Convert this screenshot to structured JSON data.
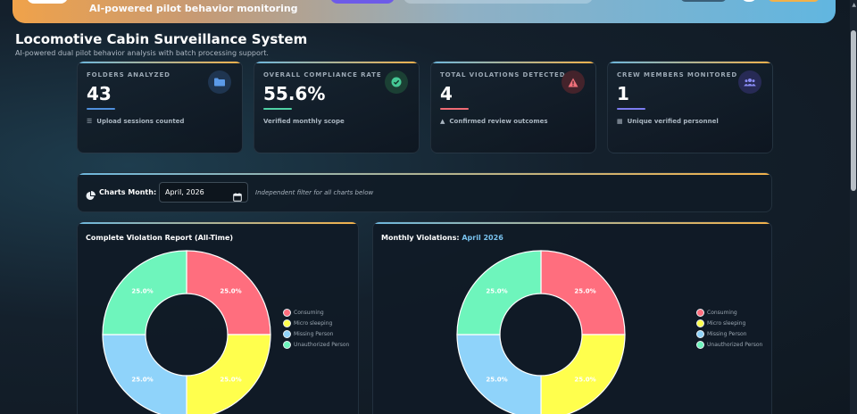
{
  "header": {
    "subtitle": "AI-powered pilot behavior monitoring"
  },
  "page": {
    "title": "Locomotive Cabin Surveillance System",
    "subtitle": "AI-powered dual pilot behavior analysis with batch processing support."
  },
  "stats": [
    {
      "label": "FOLDERS ANALYZED",
      "value": "43",
      "foot": "Upload sessions counted",
      "color": "#4f8fdc",
      "icon": "folder-icon",
      "foot_icon": "layers-icon"
    },
    {
      "label": "OVERALL COMPLIANCE RATE",
      "value": "55.6%",
      "foot": "Verified monthly scope",
      "color": "#4fd1a5",
      "icon": "check-circle-icon",
      "foot_icon": ""
    },
    {
      "label": "TOTAL VIOLATIONS DETECTED",
      "value": "4",
      "foot": "Confirmed review outcomes",
      "color": "#ef6b74",
      "icon": "warning-icon",
      "foot_icon": "warning-icon"
    },
    {
      "label": "CREW MEMBERS MONITORED",
      "value": "1",
      "foot": "Unique verified personnel",
      "color": "#7c7cf0",
      "icon": "users-icon",
      "foot_icon": "id-card-icon"
    }
  ],
  "filter": {
    "label": "Charts Month:",
    "month_value": "April, 2026",
    "note": "Independent filter for all charts below"
  },
  "charts": {
    "left_title": "Complete Violation Report (All-Time)",
    "right_title_prefix": "Monthly Violations:",
    "right_title_month": "April 2026"
  },
  "chart_data": [
    {
      "type": "pie",
      "title": "Complete Violation Report (All-Time)",
      "categories": [
        "Consuming",
        "Micro sleeping",
        "Missing Person",
        "Unauthorized Person"
      ],
      "values": [
        25.0,
        25.0,
        25.0,
        25.0
      ],
      "labels": [
        "25.0%",
        "25.0%",
        "25.0%",
        "25.0%"
      ],
      "colors": [
        "#ff6e7e",
        "#ffff4d",
        "#8fd3fa",
        "#6ef5bc"
      ],
      "legend": "right"
    },
    {
      "type": "pie",
      "title": "Monthly Violations: April 2026",
      "categories": [
        "Consuming",
        "Micro sleeping",
        "Missing Person",
        "Unauthorized Person"
      ],
      "values": [
        25.0,
        25.0,
        25.0,
        25.0
      ],
      "labels": [
        "25.0%",
        "25.0%",
        "25.0%",
        "25.0%"
      ],
      "colors": [
        "#ff6e7e",
        "#ffff4d",
        "#8fd3fa",
        "#6ef5bc"
      ],
      "legend": "right"
    }
  ]
}
